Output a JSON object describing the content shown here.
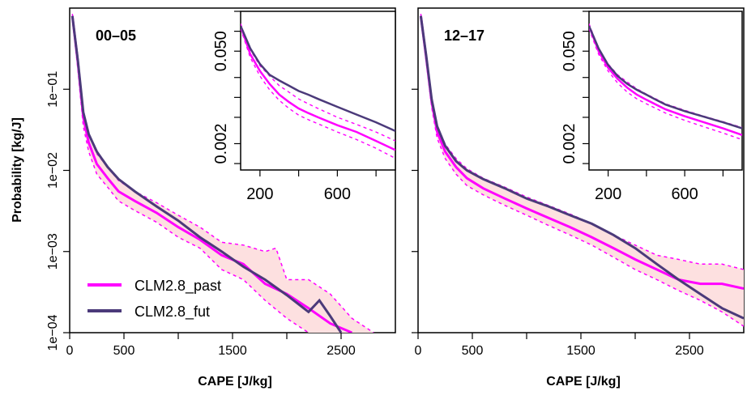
{
  "colors": {
    "past": "#ff00ff",
    "fut": "#4b3a7a",
    "band": "#fde0e0",
    "band_edge": "#ff00ff"
  },
  "ylabel": "Probability [kg/J]",
  "legend": {
    "items": [
      {
        "label": "CLM2.8_past",
        "key": "past"
      },
      {
        "label": "CLM2.8_fut",
        "key": "fut"
      }
    ],
    "position": "bottom-left of first panel"
  },
  "chart_data": [
    {
      "type": "line",
      "panel_label": "00–05",
      "xlabel": "CAPE [J/kg]",
      "ylabel": "Probability [kg/J]",
      "xlim": [
        0,
        3000
      ],
      "ylim": [
        0.0001,
        1
      ],
      "yscale": "log",
      "x_ticks": [
        "0",
        "500",
        "1500",
        "2500"
      ],
      "y_ticks": [
        "1e−04",
        "1e−03",
        "1e−02",
        "1e−01"
      ],
      "series": [
        {
          "name": "CLM2.8_past",
          "key": "past",
          "x": [
            25,
            75,
            125,
            175,
            250,
            350,
            450,
            600,
            800,
            1000,
            1200,
            1400,
            1600,
            1800,
            2000,
            2200,
            2400,
            2600
          ],
          "y": [
            0.8,
            0.22,
            0.045,
            0.022,
            0.012,
            0.008,
            0.0055,
            0.0042,
            0.003,
            0.002,
            0.0014,
            0.0009,
            0.0007,
            0.0004,
            0.0003,
            0.0002,
            0.00013,
            0.0001
          ]
        },
        {
          "name": "CLM2.8_fut",
          "key": "fut",
          "x": [
            25,
            75,
            125,
            175,
            250,
            350,
            450,
            600,
            800,
            1000,
            1200,
            1400,
            1600,
            1800,
            2000,
            2200,
            2300,
            2400,
            2500
          ],
          "y": [
            0.8,
            0.23,
            0.052,
            0.028,
            0.017,
            0.011,
            0.0078,
            0.0055,
            0.0036,
            0.0024,
            0.0015,
            0.001,
            0.00065,
            0.00045,
            0.00029,
            0.00018,
            0.00025,
            0.00016,
            0.0001
          ]
        },
        {
          "key": "past_lower",
          "x": [
            25,
            75,
            125,
            175,
            250,
            350,
            450,
            600,
            800,
            1000,
            1200,
            1400,
            1600,
            1800,
            2000,
            2200
          ],
          "y": [
            0.75,
            0.18,
            0.035,
            0.017,
            0.009,
            0.0062,
            0.0042,
            0.0032,
            0.0023,
            0.0015,
            0.0011,
            0.0006,
            0.00045,
            0.00025,
            0.00015,
            0.0001
          ]
        },
        {
          "key": "past_upper",
          "x": [
            25,
            75,
            125,
            175,
            250,
            350,
            450,
            600,
            800,
            1000,
            1200,
            1400,
            1600,
            1800,
            1900,
            2000,
            2200,
            2400,
            2600,
            2800
          ],
          "y": [
            0.85,
            0.26,
            0.055,
            0.028,
            0.016,
            0.011,
            0.0075,
            0.0055,
            0.004,
            0.0028,
            0.002,
            0.0013,
            0.0012,
            0.001,
            0.0011,
            0.00045,
            0.00045,
            0.0003,
            0.00015,
            0.0001
          ]
        }
      ],
      "inset": {
        "xlim": [
          100,
          900
        ],
        "ylim": [
          0.0008,
          0.2
        ],
        "yscale": "log",
        "x_ticks": [
          "200",
          "600"
        ],
        "y_ticks": [
          "0.002",
          "0.050"
        ],
        "series": [
          {
            "key": "past",
            "x": [
              100,
              150,
              200,
              250,
              300,
              350,
              400,
              450,
              500,
              600,
              700,
              800,
              900
            ],
            "y": [
              0.12,
              0.045,
              0.025,
              0.016,
              0.011,
              0.0085,
              0.0068,
              0.0058,
              0.005,
              0.0038,
              0.003,
              0.0022,
              0.0016
            ]
          },
          {
            "key": "fut",
            "x": [
              100,
              150,
              200,
              250,
              300,
              350,
              400,
              450,
              500,
              600,
              700,
              800,
              900
            ],
            "y": [
              0.12,
              0.055,
              0.032,
              0.022,
              0.018,
              0.015,
              0.0125,
              0.011,
              0.0095,
              0.0072,
              0.0055,
              0.0042,
              0.0031
            ]
          },
          {
            "key": "past_lower",
            "x": [
              100,
              150,
              200,
              250,
              300,
              350,
              400,
              450,
              500,
              600,
              700,
              800,
              900
            ],
            "y": [
              0.11,
              0.04,
              0.021,
              0.013,
              0.009,
              0.0068,
              0.0054,
              0.0046,
              0.004,
              0.003,
              0.0023,
              0.0017,
              0.0012
            ]
          },
          {
            "key": "past_upper",
            "x": [
              100,
              150,
              200,
              250,
              300,
              350,
              400,
              450,
              500,
              600,
              700,
              800,
              900
            ],
            "y": [
              0.13,
              0.052,
              0.03,
              0.021,
              0.015,
              0.012,
              0.0095,
              0.008,
              0.0068,
              0.005,
              0.0039,
              0.003,
              0.0022
            ]
          }
        ]
      }
    },
    {
      "type": "line",
      "panel_label": "12–17",
      "xlabel": "CAPE [J/kg]",
      "xlim": [
        0,
        3000
      ],
      "ylim": [
        0.0001,
        1
      ],
      "yscale": "log",
      "x_ticks": [
        "0",
        "500",
        "1500",
        "2500"
      ],
      "series": [
        {
          "name": "CLM2.8_past",
          "key": "past",
          "x": [
            25,
            75,
            125,
            175,
            250,
            350,
            450,
            600,
            800,
            1000,
            1200,
            1400,
            1600,
            1800,
            2000,
            2200,
            2400,
            2600,
            2800,
            3000
          ],
          "y": [
            0.8,
            0.25,
            0.07,
            0.03,
            0.017,
            0.011,
            0.008,
            0.006,
            0.0045,
            0.0034,
            0.0026,
            0.002,
            0.0015,
            0.0011,
            0.0008,
            0.0006,
            0.00045,
            0.0004,
            0.0004,
            0.00035
          ]
        },
        {
          "name": "CLM2.8_fut",
          "key": "fut",
          "x": [
            25,
            75,
            125,
            175,
            250,
            350,
            450,
            600,
            800,
            1000,
            1200,
            1400,
            1600,
            1800,
            2000,
            2200,
            2400,
            2600,
            2800,
            3000
          ],
          "y": [
            0.8,
            0.26,
            0.075,
            0.035,
            0.02,
            0.013,
            0.01,
            0.0078,
            0.006,
            0.0045,
            0.0036,
            0.0028,
            0.0022,
            0.0016,
            0.0011,
            0.0007,
            0.00045,
            0.0003,
            0.0002,
            0.00015
          ]
        },
        {
          "key": "past_lower",
          "x": [
            25,
            75,
            125,
            175,
            250,
            350,
            450,
            600,
            800,
            1000,
            1200,
            1400,
            1600,
            1800,
            2000,
            2200,
            2400,
            2600,
            2800,
            3000
          ],
          "y": [
            0.75,
            0.22,
            0.06,
            0.025,
            0.014,
            0.009,
            0.0065,
            0.005,
            0.0037,
            0.0028,
            0.0021,
            0.0016,
            0.0012,
            0.00085,
            0.0006,
            0.00045,
            0.00033,
            0.00025,
            0.00018,
            0.00012
          ]
        },
        {
          "key": "past_upper",
          "x": [
            25,
            75,
            125,
            175,
            250,
            350,
            450,
            600,
            800,
            1000,
            1200,
            1400,
            1600,
            1800,
            2000,
            2200,
            2400,
            2600,
            2800,
            3000
          ],
          "y": [
            0.85,
            0.28,
            0.08,
            0.036,
            0.021,
            0.014,
            0.0105,
            0.008,
            0.0062,
            0.0047,
            0.0037,
            0.0029,
            0.0022,
            0.0016,
            0.0012,
            0.0009,
            0.0008,
            0.0007,
            0.0007,
            0.0006
          ]
        }
      ],
      "inset": {
        "xlim": [
          100,
          900
        ],
        "ylim": [
          0.0008,
          0.2
        ],
        "yscale": "log",
        "x_ticks": [
          "200",
          "600"
        ],
        "y_ticks": [
          "0.002",
          "0.050"
        ],
        "series": [
          {
            "key": "past",
            "x": [
              100,
              150,
              200,
              250,
              300,
              350,
              400,
              450,
              500,
              600,
              700,
              800,
              900
            ],
            "y": [
              0.12,
              0.05,
              0.028,
              0.019,
              0.014,
              0.011,
              0.0092,
              0.0078,
              0.0066,
              0.0052,
              0.0042,
              0.0034,
              0.0027
            ]
          },
          {
            "key": "fut",
            "x": [
              100,
              150,
              200,
              250,
              300,
              350,
              400,
              450,
              500,
              600,
              700,
              800,
              900
            ],
            "y": [
              0.12,
              0.055,
              0.031,
              0.021,
              0.016,
              0.013,
              0.011,
              0.0092,
              0.0078,
              0.0062,
              0.0051,
              0.0042,
              0.0034
            ]
          },
          {
            "key": "past_lower",
            "x": [
              100,
              150,
              200,
              250,
              300,
              350,
              400,
              450,
              500,
              600,
              700,
              800,
              900
            ],
            "y": [
              0.11,
              0.045,
              0.025,
              0.0165,
              0.012,
              0.0095,
              0.008,
              0.0068,
              0.0058,
              0.0045,
              0.0036,
              0.0029,
              0.0023
            ]
          },
          {
            "key": "past_upper",
            "x": [
              100,
              150,
              200,
              250,
              300,
              350,
              400,
              450,
              500,
              600,
              700,
              800,
              900
            ],
            "y": [
              0.13,
              0.055,
              0.032,
              0.022,
              0.017,
              0.0135,
              0.0112,
              0.0095,
              0.008,
              0.0064,
              0.0052,
              0.0043,
              0.0035
            ]
          }
        ]
      }
    }
  ]
}
